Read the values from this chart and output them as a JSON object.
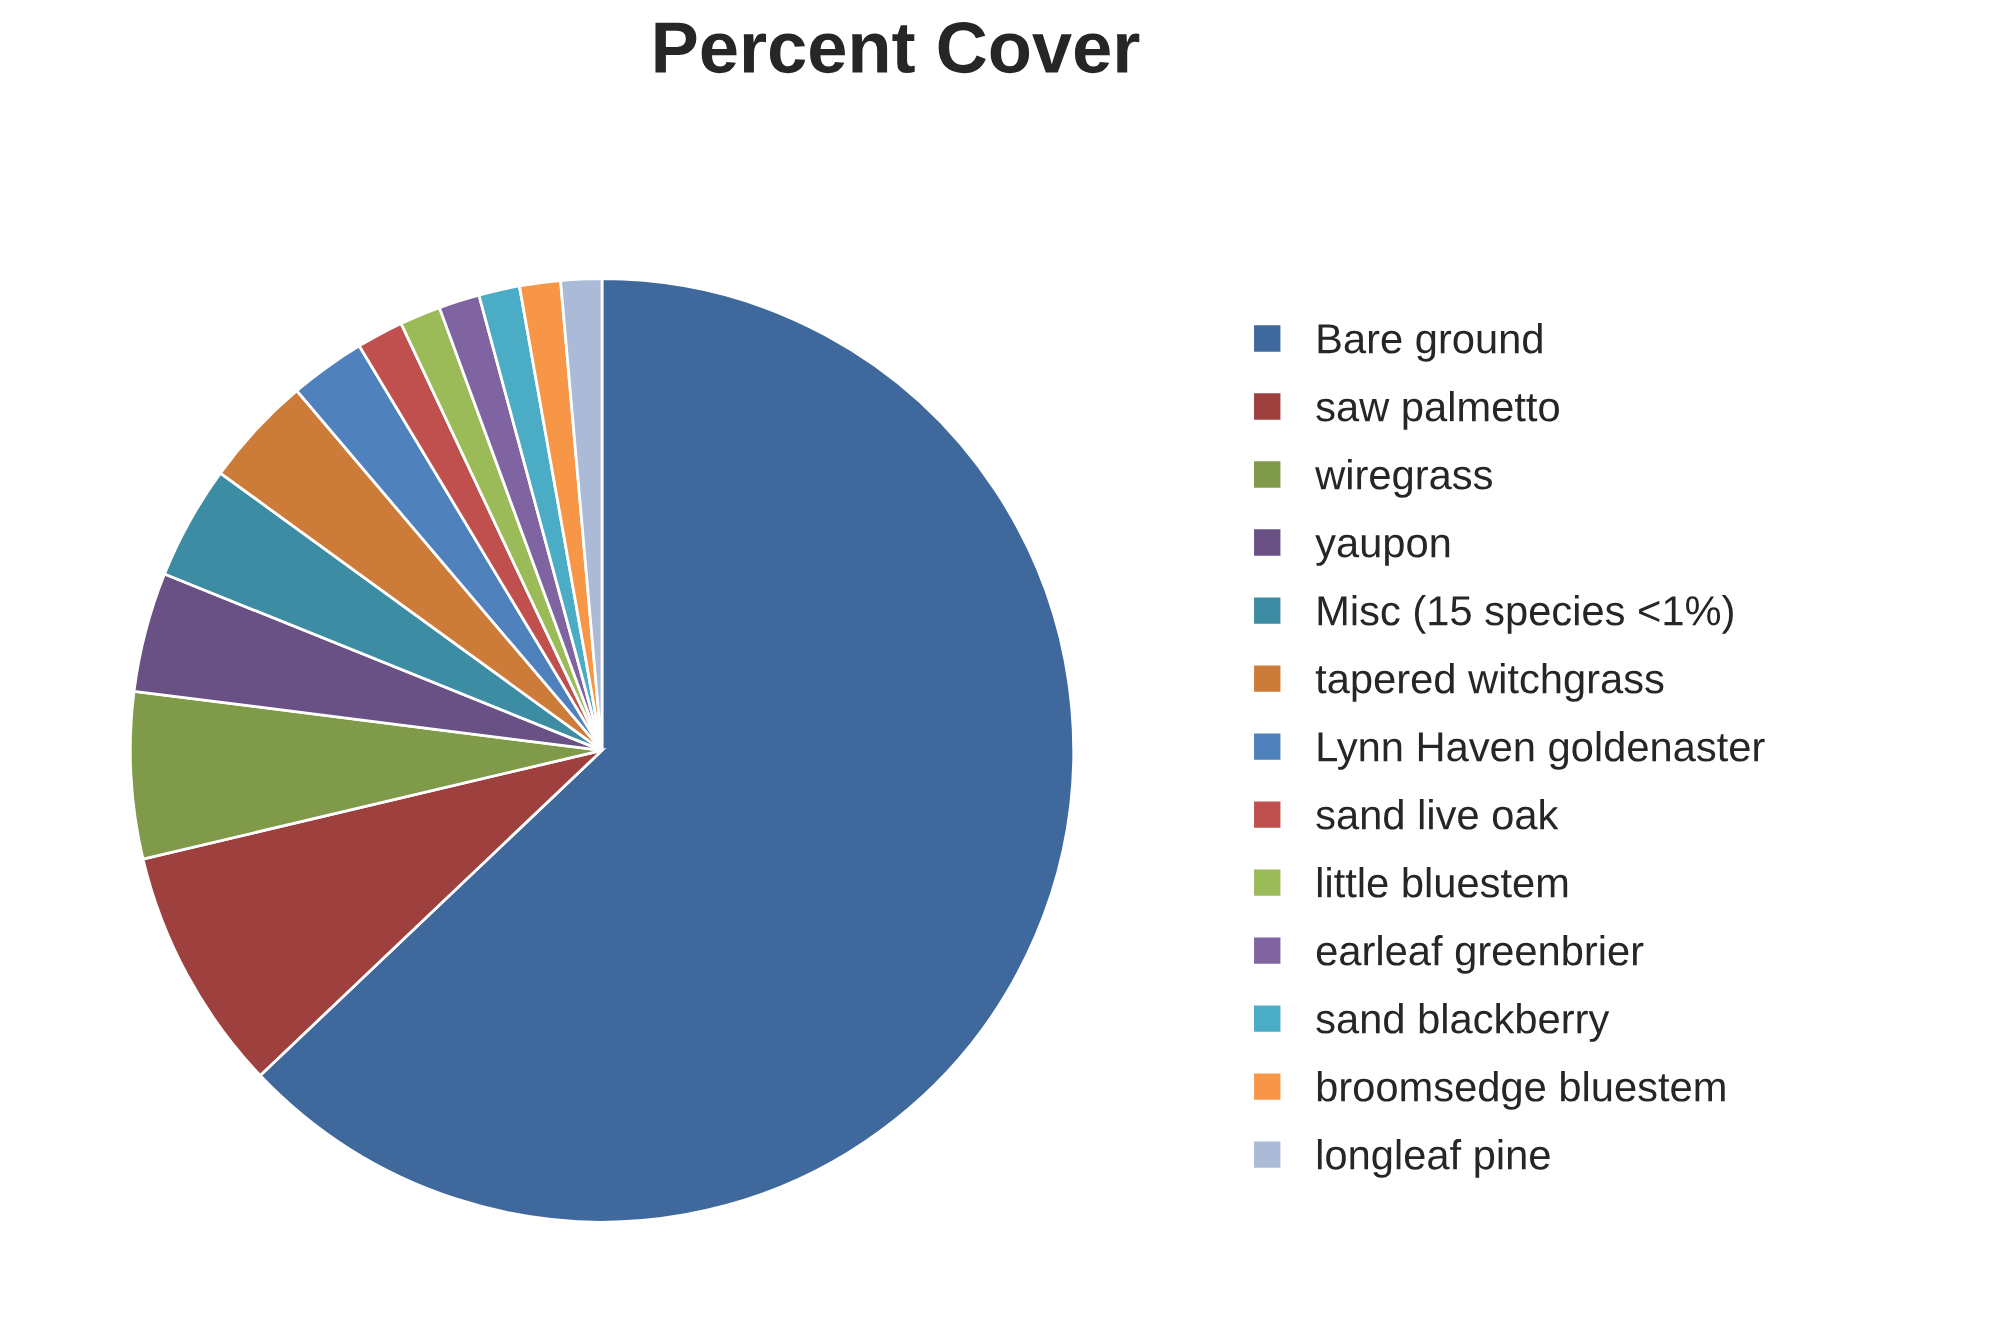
{
  "chart_data": {
    "type": "pie",
    "title": "Percent Cover",
    "categories": [
      "Bare ground",
      "saw palmetto",
      "wiregrass",
      "yaupon",
      "Misc (15 species <1%)",
      "tapered witchgrass",
      "Lynn Haven goldenaster",
      "sand live oak",
      "little bluestem",
      "earleaf greenbrier",
      "sand blackberry",
      "broomsedge bluestem",
      "longleaf pine"
    ],
    "values": [
      62.9,
      8.4,
      5.7,
      4.1,
      3.9,
      3.8,
      2.6,
      1.6,
      1.4,
      1.4,
      1.4,
      1.4,
      1.4
    ],
    "colors": [
      "#3f689c",
      "#9e413e",
      "#7f9a48",
      "#695185",
      "#3c8da3",
      "#cc7b38",
      "#4f81bd",
      "#c0504d",
      "#9bbb59",
      "#8064a2",
      "#4bacc6",
      "#f79646",
      "#aabad7"
    ],
    "legend": "right"
  }
}
